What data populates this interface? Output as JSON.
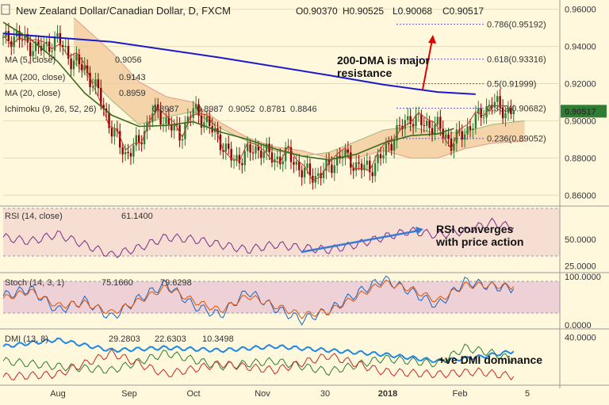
{
  "chart_data": [
    {
      "type": "candlestick",
      "panel": "price",
      "title": "New Zealand Dollar/Canadian Dollar, D, FXCM",
      "ohlc_readout": {
        "o": "O0.90370",
        "h": "H0.90525",
        "l": "L0.90068",
        "c": "C0.90517"
      },
      "indicator_labels": [
        {
          "name": "MA (5, close)",
          "value": "0.9056",
          "color": "#b22222"
        },
        {
          "name": "MA (200, close)",
          "value": "0.9143",
          "color": "#0000cc"
        },
        {
          "name": "MA (20, close)",
          "value": "0.8959",
          "color": "#2e7d32"
        },
        {
          "name": "Ichimoku (9, 26, 52, 26)",
          "values": [
            "0.8987",
            "0.8987",
            "0.9052",
            "0.8781",
            "0.8846"
          ],
          "colors": [
            "#1565c0",
            "#8b0000",
            "#2e7d32",
            "#2e7d32",
            "#b22222"
          ]
        }
      ],
      "y_ticks": [
        "0.96000",
        "0.94000",
        "0.92000",
        "0.90000",
        "0.88000",
        "0.86000"
      ],
      "ylim": [
        0.855,
        0.965
      ],
      "x_ticks": [
        "Aug",
        "Sep",
        "Oct",
        "Nov",
        "30",
        "2018",
        "Feb",
        "5"
      ],
      "last_price_label": "0.90517",
      "fib_levels": [
        {
          "label": "0.786(0.95192)",
          "value": 0.95192
        },
        {
          "label": "0.618(0.93316)",
          "value": 0.93316
        },
        {
          "label": "0.5(0.91999)",
          "value": 0.91999
        },
        {
          "label": "0.382(0.90682)",
          "value": 0.90682
        },
        {
          "label": "0.236(0.89052)",
          "value": 0.89052
        }
      ],
      "annotation": "200-DMA is major\nresistance",
      "ma200": [
        [
          0,
          0.947
        ],
        [
          40,
          0.9425
        ],
        [
          80,
          0.934
        ],
        [
          120,
          0.9245
        ],
        [
          140,
          0.9195
        ],
        [
          160,
          0.9155
        ],
        [
          174,
          0.9143
        ]
      ],
      "ma20": [
        [
          0,
          0.953
        ],
        [
          10,
          0.944
        ],
        [
          20,
          0.932
        ],
        [
          30,
          0.915
        ],
        [
          40,
          0.903
        ],
        [
          50,
          0.897
        ],
        [
          60,
          0.8975
        ],
        [
          70,
          0.8995
        ],
        [
          80,
          0.894
        ],
        [
          90,
          0.89
        ],
        [
          100,
          0.885
        ],
        [
          110,
          0.881
        ],
        [
          120,
          0.879
        ],
        [
          130,
          0.882
        ],
        [
          140,
          0.888
        ],
        [
          150,
          0.892
        ],
        [
          160,
          0.893
        ],
        [
          166,
          0.8959
        ]
      ],
      "cloud_a": [
        [
          26,
          0.9315
        ],
        [
          40,
          0.911
        ],
        [
          50,
          0.898
        ],
        [
          60,
          0.902
        ],
        [
          70,
          0.905
        ],
        [
          80,
          0.896
        ],
        [
          90,
          0.889
        ],
        [
          100,
          0.884
        ],
        [
          110,
          0.881
        ],
        [
          120,
          0.883
        ],
        [
          130,
          0.889
        ],
        [
          140,
          0.895
        ],
        [
          150,
          0.897
        ],
        [
          160,
          0.893
        ],
        [
          170,
          0.894
        ],
        [
          180,
          0.898
        ],
        [
          192,
          0.9
        ]
      ],
      "cloud_b": [
        [
          26,
          0.9555
        ],
        [
          40,
          0.937
        ],
        [
          50,
          0.921
        ],
        [
          60,
          0.913
        ],
        [
          70,
          0.91
        ],
        [
          80,
          0.899
        ],
        [
          90,
          0.891
        ],
        [
          100,
          0.886
        ],
        [
          110,
          0.884
        ],
        [
          120,
          0.88
        ],
        [
          130,
          0.88
        ],
        [
          140,
          0.884
        ],
        [
          150,
          0.88
        ],
        [
          160,
          0.88
        ],
        [
          170,
          0.885
        ],
        [
          180,
          0.888
        ],
        [
          192,
          0.889
        ]
      ],
      "price_close": [
        [
          0,
          0.943
        ],
        [
          5,
          0.946
        ],
        [
          10,
          0.94
        ],
        [
          15,
          0.939
        ],
        [
          20,
          0.944
        ],
        [
          25,
          0.933
        ],
        [
          30,
          0.928
        ],
        [
          35,
          0.915
        ],
        [
          40,
          0.895
        ],
        [
          45,
          0.882
        ],
        [
          50,
          0.888
        ],
        [
          55,
          0.905
        ],
        [
          60,
          0.9
        ],
        [
          65,
          0.892
        ],
        [
          70,
          0.906
        ],
        [
          75,
          0.899
        ],
        [
          80,
          0.889
        ],
        [
          85,
          0.878
        ],
        [
          90,
          0.883
        ],
        [
          95,
          0.885
        ],
        [
          100,
          0.879
        ],
        [
          105,
          0.882
        ],
        [
          110,
          0.873
        ],
        [
          115,
          0.87
        ],
        [
          120,
          0.875
        ],
        [
          125,
          0.882
        ],
        [
          130,
          0.876
        ],
        [
          135,
          0.874
        ],
        [
          140,
          0.882
        ],
        [
          145,
          0.894
        ],
        [
          150,
          0.902
        ],
        [
          155,
          0.898
        ],
        [
          160,
          0.897
        ],
        [
          165,
          0.888
        ],
        [
          170,
          0.894
        ],
        [
          175,
          0.902
        ],
        [
          180,
          0.91
        ],
        [
          185,
          0.905
        ],
        [
          188,
          0.90517
        ]
      ]
    },
    {
      "type": "line",
      "panel": "rsi",
      "label": "RSI (14, close)",
      "value": "61.1400",
      "y_ticks": [
        "50.0000",
        "25.0000"
      ],
      "ylim": [
        20,
        80
      ],
      "annotation": "RSI converges\nwith price action",
      "series_values": [
        [
          0,
          52
        ],
        [
          10,
          48
        ],
        [
          20,
          55
        ],
        [
          30,
          45
        ],
        [
          40,
          35
        ],
        [
          50,
          42
        ],
        [
          60,
          52
        ],
        [
          70,
          50
        ],
        [
          80,
          45
        ],
        [
          90,
          40
        ],
        [
          100,
          45
        ],
        [
          110,
          42
        ],
        [
          120,
          40
        ],
        [
          130,
          45
        ],
        [
          140,
          52
        ],
        [
          150,
          58
        ],
        [
          160,
          54
        ],
        [
          170,
          58
        ],
        [
          180,
          66
        ],
        [
          188,
          61.14
        ]
      ]
    },
    {
      "type": "line",
      "panel": "stoch",
      "label": "Stoch (14, 3, 1)",
      "values": [
        "75.1660",
        "79.6298"
      ],
      "y_ticks": [
        "100.0000",
        "0.0000"
      ],
      "ylim": [
        -5,
        105
      ],
      "k_values": [
        [
          0,
          60
        ],
        [
          10,
          75
        ],
        [
          20,
          30
        ],
        [
          30,
          50
        ],
        [
          40,
          15
        ],
        [
          50,
          55
        ],
        [
          60,
          85
        ],
        [
          70,
          40
        ],
        [
          80,
          20
        ],
        [
          90,
          70
        ],
        [
          100,
          35
        ],
        [
          110,
          10
        ],
        [
          120,
          30
        ],
        [
          130,
          65
        ],
        [
          140,
          95
        ],
        [
          150,
          70
        ],
        [
          160,
          40
        ],
        [
          170,
          90
        ],
        [
          180,
          80
        ],
        [
          188,
          75.166
        ]
      ],
      "d_values": [
        [
          0,
          55
        ],
        [
          10,
          70
        ],
        [
          20,
          40
        ],
        [
          30,
          45
        ],
        [
          40,
          25
        ],
        [
          50,
          50
        ],
        [
          60,
          78
        ],
        [
          70,
          50
        ],
        [
          80,
          30
        ],
        [
          90,
          60
        ],
        [
          100,
          40
        ],
        [
          110,
          20
        ],
        [
          120,
          28
        ],
        [
          130,
          58
        ],
        [
          140,
          88
        ],
        [
          150,
          75
        ],
        [
          160,
          50
        ],
        [
          170,
          82
        ],
        [
          180,
          82
        ],
        [
          188,
          79.6298
        ]
      ]
    },
    {
      "type": "line",
      "panel": "dmi",
      "label": "DMI (13, 8)",
      "values": [
        "29.2803",
        "22.6303",
        "10.3498"
      ],
      "y_ticks": [
        "40.0000"
      ],
      "ylim": [
        5,
        45
      ],
      "annotation": "+ve DMI dominance",
      "adx": [
        [
          0,
          33
        ],
        [
          20,
          38
        ],
        [
          40,
          30
        ],
        [
          60,
          32
        ],
        [
          80,
          30
        ],
        [
          100,
          33
        ],
        [
          120,
          30
        ],
        [
          140,
          27
        ],
        [
          160,
          22
        ],
        [
          175,
          25
        ],
        [
          188,
          29.28
        ]
      ],
      "plus_di": [
        [
          0,
          22
        ],
        [
          20,
          18
        ],
        [
          40,
          15
        ],
        [
          60,
          28
        ],
        [
          80,
          18
        ],
        [
          100,
          22
        ],
        [
          120,
          14
        ],
        [
          140,
          24
        ],
        [
          160,
          20
        ],
        [
          170,
          32
        ],
        [
          180,
          28
        ],
        [
          188,
          22.63
        ]
      ],
      "minus_di": [
        [
          0,
          10
        ],
        [
          20,
          12
        ],
        [
          40,
          28
        ],
        [
          60,
          12
        ],
        [
          80,
          20
        ],
        [
          100,
          15
        ],
        [
          120,
          26
        ],
        [
          140,
          14
        ],
        [
          160,
          12
        ],
        [
          175,
          14
        ],
        [
          188,
          10.35
        ]
      ]
    }
  ]
}
